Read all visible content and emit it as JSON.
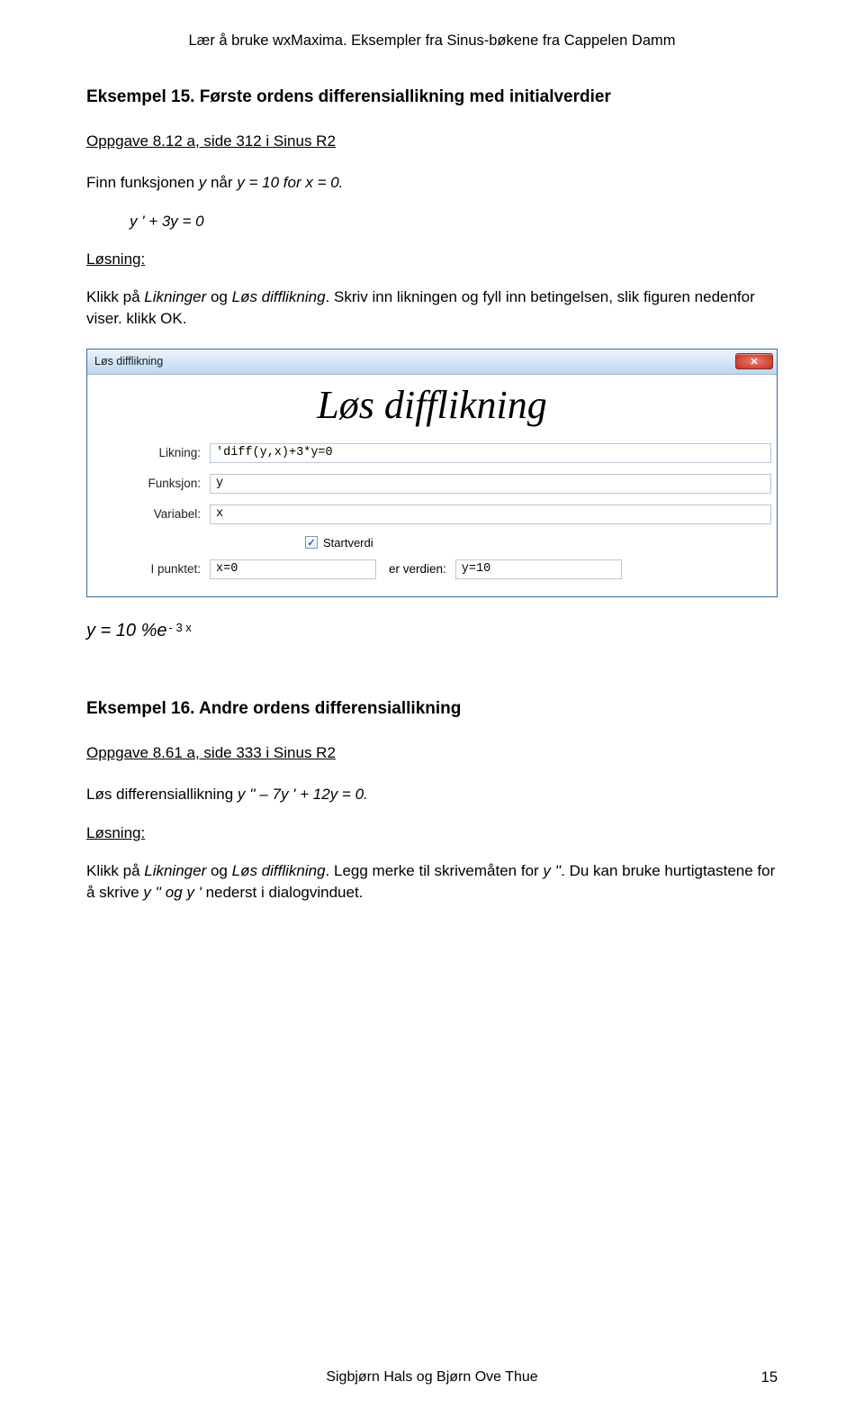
{
  "header": "Lær å bruke wxMaxima. Eksempler fra Sinus-bøkene fra Cappelen Damm",
  "ex15": {
    "title": "Eksempel 15. Første ordens differensiallikning med initialverdier",
    "task": "Oppgave 8.12 a, side 312 i Sinus R2",
    "prompt_pre": "Finn funksjonen ",
    "prompt_mid": " når ",
    "prompt_y": "y",
    "prompt_cond": "y = 10 for x = 0.",
    "equation": "y ' + 3y = 0",
    "solution_label": "Løsning:",
    "instr_a": "Klikk på ",
    "instr_menu1": "Likninger",
    "instr_og": " og ",
    "instr_menu2": "Løs difflikning",
    "instr_b": ". Skriv inn likningen og fyll inn betingelsen, slik figuren nedenfor viser. klikk OK."
  },
  "dialog": {
    "title": "Løs difflikning",
    "heading": "Løs difflikning",
    "labels": {
      "likning": "Likning:",
      "funksjon": "Funksjon:",
      "variabel": "Variabel:",
      "ipunkt": "I punktet:",
      "erverdi": "er verdien:"
    },
    "values": {
      "likning": "'diff(y,x)+3*y=0",
      "funksjon": "y",
      "variabel": "x",
      "ipunkt": "x=0",
      "erverdi": "y=10"
    },
    "checkbox_label": "Startverdi",
    "checkbox_checked": true,
    "close_glyph": "✕"
  },
  "formula": {
    "lhs": "y = 10 %e",
    "exp": "- 3 x"
  },
  "ex16": {
    "title": "Eksempel 16. Andre ordens differensiallikning",
    "task": "Oppgave 8.61 a, side 333 i Sinus R2",
    "prompt_pre": "Løs differensiallikning ",
    "prompt_eq": "y '' – 7y ' + 12y = 0.",
    "solution_label": "Løsning:",
    "instr_a": "Klikk på ",
    "instr_menu1": "Likninger",
    "instr_og": " og ",
    "instr_menu2": "Løs difflikning",
    "instr_b": ". Legg merke til skrivemåten for ",
    "instr_yq": "y ''",
    "instr_c": ". Du kan bruke hurtigtastene for å skrive ",
    "instr_d": "y '' og y '",
    "instr_e": " nederst i dialogvinduet."
  },
  "footer": {
    "authors": "Sigbjørn Hals og Bjørn Ove Thue",
    "page": "15"
  }
}
